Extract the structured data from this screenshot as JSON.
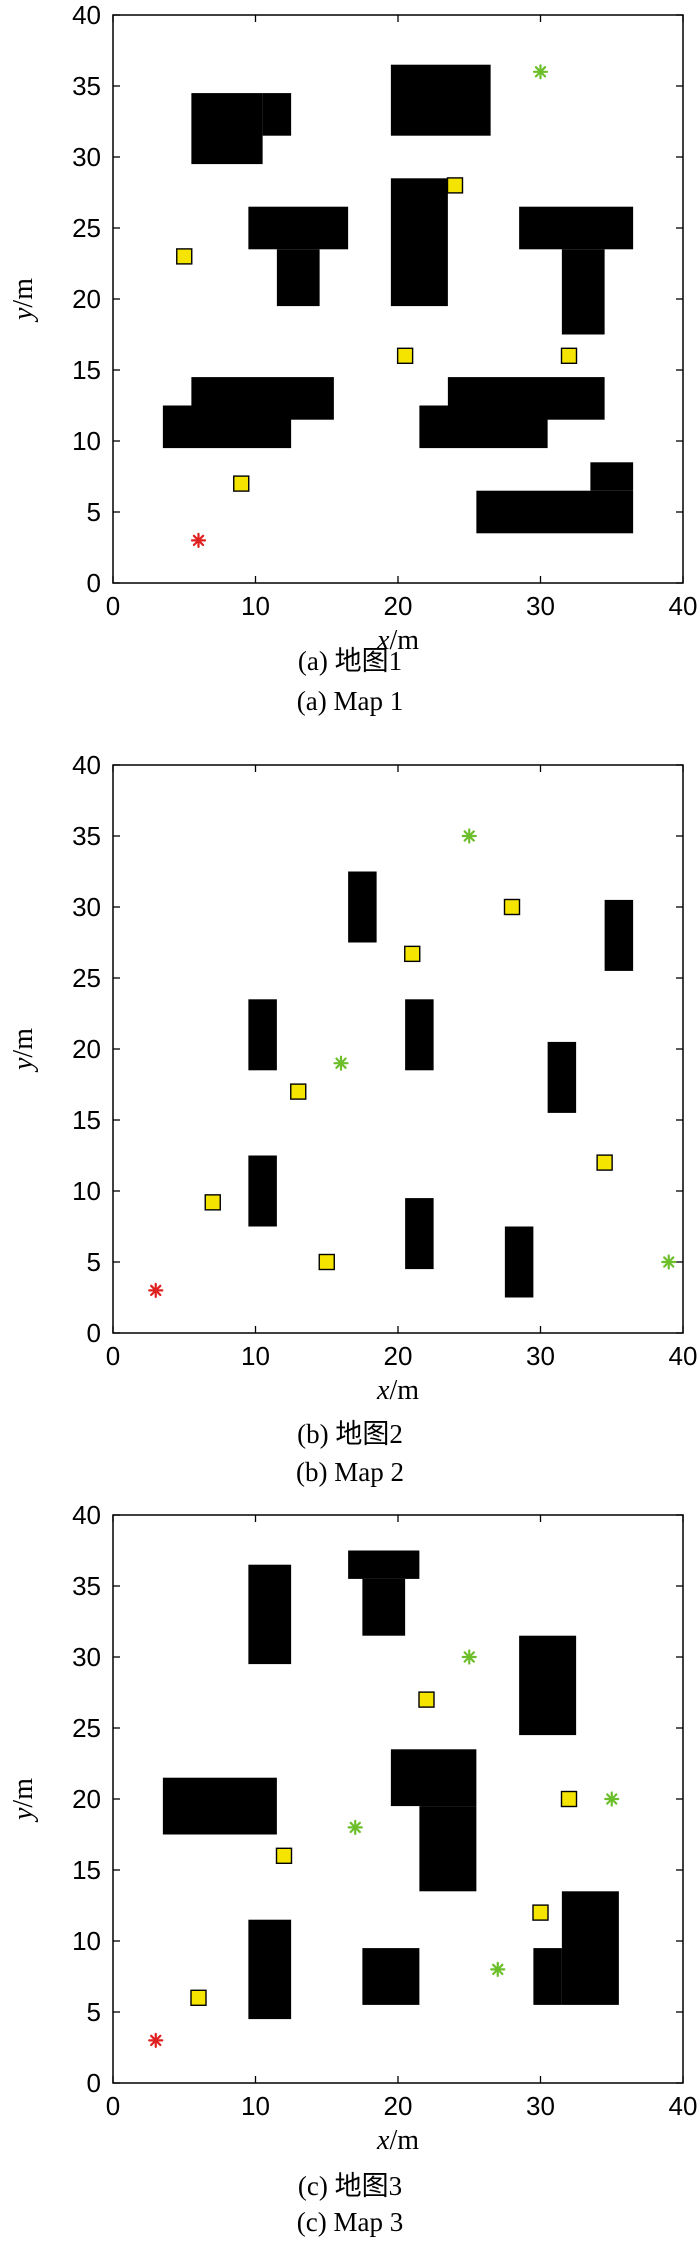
{
  "axes": {
    "x_label_var": "x",
    "x_label_unit": "/m",
    "y_label_var": "y",
    "y_label_unit": "/m",
    "xlim": [
      0,
      40
    ],
    "ylim": [
      0,
      40
    ],
    "ticks": [
      "0",
      "10",
      "20",
      "30",
      "40"
    ],
    "y_ticks": [
      "0",
      "5",
      "10",
      "15",
      "20",
      "25",
      "30",
      "35",
      "40"
    ]
  },
  "colors": {
    "obstacle": "#000000",
    "task_point": "#f5e400",
    "start": "#e02020",
    "goal": "#6cbf2a"
  },
  "maps": [
    {
      "caption_cn": "(a) 地图1",
      "caption_en": "(a) Map 1",
      "obstacles": [
        [
          5.5,
          29.5,
          10.5,
          34.5
        ],
        [
          10.5,
          31.5,
          12.5,
          34.5
        ],
        [
          19.5,
          31.5,
          26.5,
          36.5
        ],
        [
          9.5,
          23.5,
          16.5,
          26.5
        ],
        [
          11.5,
          19.5,
          14.5,
          23.5
        ],
        [
          19.5,
          19.5,
          23.5,
          28.5
        ],
        [
          28.5,
          23.5,
          36.5,
          26.5
        ],
        [
          31.5,
          17.5,
          34.5,
          23.5
        ],
        [
          5.5,
          11.5,
          15.5,
          14.5
        ],
        [
          3.5,
          9.5,
          12.5,
          12.5
        ],
        [
          23.5,
          11.5,
          34.5,
          14.5
        ],
        [
          21.5,
          9.5,
          30.5,
          12.5
        ],
        [
          33.5,
          6.5,
          36.5,
          8.5
        ],
        [
          25.5,
          3.5,
          36.5,
          6.5
        ]
      ],
      "task_points": [
        [
          24,
          28
        ],
        [
          5,
          23
        ],
        [
          20.5,
          16
        ],
        [
          32,
          16
        ],
        [
          9,
          7
        ]
      ],
      "starts": [
        [
          6,
          3
        ]
      ],
      "goals": [
        [
          30,
          36
        ]
      ]
    },
    {
      "caption_cn": "(b) 地图2",
      "caption_en": "(b) Map 2",
      "obstacles": [
        [
          16.5,
          27.5,
          18.5,
          32.5
        ],
        [
          34.5,
          25.5,
          36.5,
          30.5
        ],
        [
          9.5,
          18.5,
          11.5,
          23.5
        ],
        [
          20.5,
          18.5,
          22.5,
          23.5
        ],
        [
          30.5,
          15.5,
          32.5,
          20.5
        ],
        [
          9.5,
          7.5,
          11.5,
          12.5
        ],
        [
          20.5,
          4.5,
          22.5,
          9.5
        ],
        [
          27.5,
          2.5,
          29.5,
          7.5
        ]
      ],
      "task_points": [
        [
          28,
          30
        ],
        [
          21,
          26.7
        ],
        [
          13,
          17
        ],
        [
          7,
          9.2
        ],
        [
          15,
          5
        ],
        [
          34.5,
          12
        ]
      ],
      "starts": [
        [
          3,
          3
        ]
      ],
      "goals": [
        [
          25,
          35
        ],
        [
          16,
          19
        ],
        [
          39,
          5
        ]
      ]
    },
    {
      "caption_cn": "(c) 地图3",
      "caption_en": "(c) Map 3",
      "obstacles": [
        [
          9.5,
          29.5,
          12.5,
          36.5
        ],
        [
          16.5,
          35.5,
          21.5,
          37.5
        ],
        [
          17.5,
          31.5,
          20.5,
          35.5
        ],
        [
          28.5,
          24.5,
          32.5,
          31.5
        ],
        [
          3.5,
          17.5,
          11.5,
          21.5
        ],
        [
          19.5,
          19.5,
          25.5,
          23.5
        ],
        [
          21.5,
          13.5,
          25.5,
          19.5
        ],
        [
          9.5,
          4.5,
          12.5,
          11.5
        ],
        [
          17.5,
          5.5,
          21.5,
          9.5
        ],
        [
          31.5,
          5.5,
          35.5,
          13.5
        ],
        [
          29.5,
          5.5,
          31.5,
          9.5
        ]
      ],
      "task_points": [
        [
          22,
          27
        ],
        [
          32,
          20
        ],
        [
          12,
          16
        ],
        [
          30,
          12
        ],
        [
          6,
          6
        ]
      ],
      "starts": [
        [
          3,
          3
        ]
      ],
      "goals": [
        [
          25,
          30
        ],
        [
          35,
          20
        ],
        [
          17,
          18
        ],
        [
          27,
          8
        ]
      ]
    }
  ]
}
